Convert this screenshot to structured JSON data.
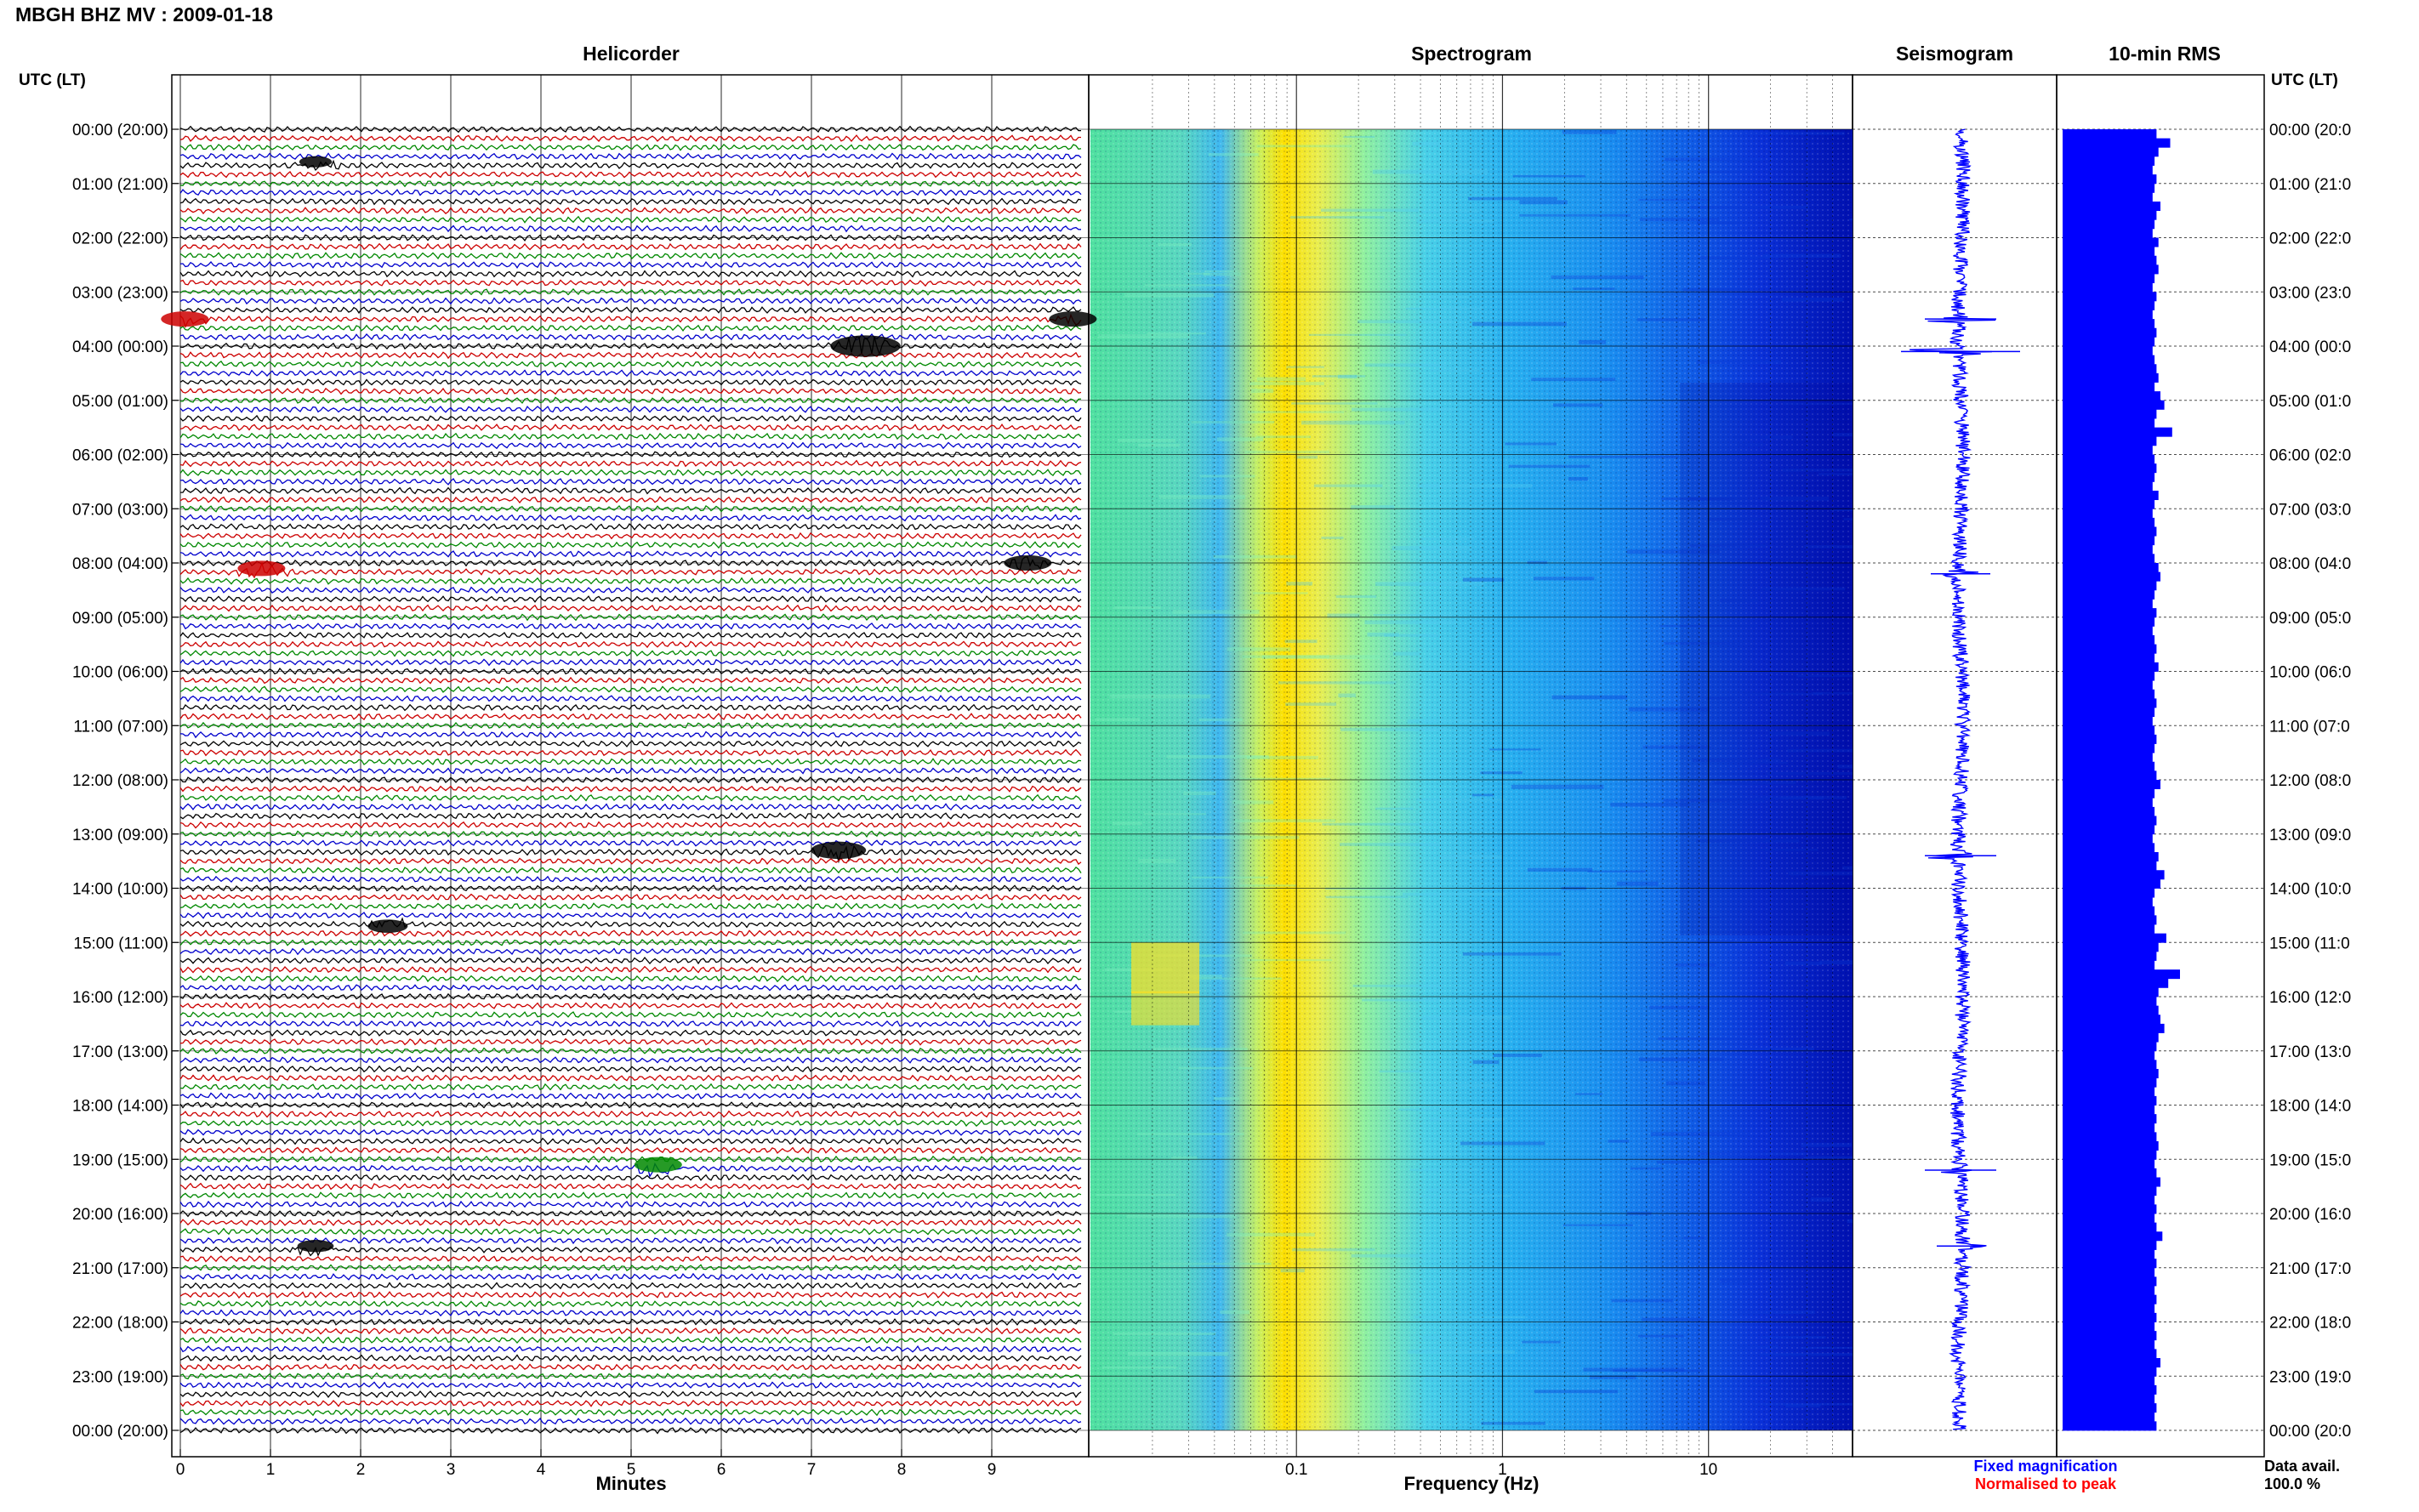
{
  "header": {
    "title": "MBGH BHZ MV : 2009-01-18"
  },
  "panels": {
    "helicorder": "Helicorder",
    "spectrogram": "Spectrogram",
    "seismogram": "Seismogram",
    "rms": "10-min RMS"
  },
  "axis_labels": {
    "utc_left": "UTC (LT)",
    "utc_right": "UTC (LT)",
    "minutes": "Minutes",
    "frequency": "Frequency (Hz)"
  },
  "legend": {
    "fixed": "Fixed magnification",
    "normalised": "Normalised to peak",
    "fixed_color": "#0000ff",
    "normalised_color": "#ff0000"
  },
  "availability": {
    "label": "Data avail.",
    "value": "100.0 %"
  },
  "colors": {
    "trace_cycle": [
      "#000000",
      "#cc0000",
      "#008800",
      "#0000cc"
    ],
    "seismogram": "#0000ff",
    "rms": "#0000ff"
  },
  "chart_data": {
    "type": "heatmap",
    "hour_labels": [
      "00:00 (20:00)",
      "01:00 (21:00)",
      "02:00 (22:00)",
      "03:00 (23:00)",
      "04:00 (00:00)",
      "05:00 (01:00)",
      "06:00 (02:00)",
      "07:00 (03:00)",
      "08:00 (04:00)",
      "09:00 (05:00)",
      "10:00 (06:00)",
      "11:00 (07:00)",
      "12:00 (08:00)",
      "13:00 (09:00)",
      "14:00 (10:00)",
      "15:00 (11:00)",
      "16:00 (12:00)",
      "17:00 (13:00)",
      "18:00 (14:00)",
      "19:00 (15:00)",
      "20:00 (16:00)",
      "21:00 (17:00)",
      "22:00 (18:00)",
      "23:00 (19:00)",
      "00:00 (20:00)"
    ],
    "right_hour_labels": [
      "00:00 (20:0",
      "01:00 (21:0",
      "02:00 (22:0",
      "03:00 (23:0",
      "04:00 (00:0",
      "05:00 (01:0",
      "06:00 (02:0",
      "07:00 (03:0",
      "08:00 (04:0",
      "09:00 (05:0",
      "10:00 (06:0",
      "11:00 (07:0",
      "12:00 (08:0",
      "13:00 (09:0",
      "14:00 (10:0",
      "15:00 (11:0",
      "16:00 (12:0",
      "17:00 (13:0",
      "18:00 (14:0",
      "19:00 (15:0",
      "20:00 (16:0",
      "21:00 (17:0",
      "22:00 (18:0",
      "23:00 (19:0",
      "00:00 (20:0"
    ],
    "minutes_ticks": [
      "0",
      "1",
      "2",
      "3",
      "4",
      "5",
      "6",
      "7",
      "8",
      "9"
    ],
    "minutes_range": [
      0,
      10
    ],
    "traces_per_hour": 6,
    "frequency_ticks": [
      "0.1",
      "1",
      "10"
    ],
    "frequency_range": [
      0.01,
      50
    ],
    "frequency_scale": "log",
    "grid": true,
    "helicorder_events": [
      {
        "hour": 0.6,
        "minute": 1.5,
        "color": "#000000",
        "amp": 0.6
      },
      {
        "hour": 3.5,
        "minute": 0.05,
        "color": "#cc0000",
        "amp": 1.0
      },
      {
        "hour": 3.5,
        "minute": 9.9,
        "color": "#000000",
        "amp": 1.0
      },
      {
        "hour": 4.0,
        "minute": 7.6,
        "color": "#000000",
        "amp": 1.6
      },
      {
        "hour": 8.1,
        "minute": 0.9,
        "color": "#cc0000",
        "amp": 1.0
      },
      {
        "hour": 8.0,
        "minute": 9.4,
        "color": "#000000",
        "amp": 1.0
      },
      {
        "hour": 13.3,
        "minute": 7.3,
        "color": "#000000",
        "amp": 1.2
      },
      {
        "hour": 14.7,
        "minute": 2.3,
        "color": "#000000",
        "amp": 0.8
      },
      {
        "hour": 19.1,
        "minute": 5.3,
        "color": "#008800",
        "amp": 1.0
      },
      {
        "hour": 20.6,
        "minute": 1.5,
        "color": "#000000",
        "amp": 0.7
      }
    ],
    "seismogram_spikes": [
      {
        "hour": 3.5,
        "amp": 0.6
      },
      {
        "hour": 4.1,
        "amp": 1.0
      },
      {
        "hour": 8.2,
        "amp": 0.5
      },
      {
        "hour": 13.4,
        "amp": 0.6
      },
      {
        "hour": 19.2,
        "amp": 0.6
      },
      {
        "hour": 20.6,
        "amp": 0.4
      }
    ],
    "rms_values": [
      0.48,
      0.55,
      0.49,
      0.47,
      0.46,
      0.48,
      0.47,
      0.46,
      0.5,
      0.48,
      0.47,
      0.46,
      0.49,
      0.47,
      0.48,
      0.49,
      0.47,
      0.46,
      0.48,
      0.47,
      0.46,
      0.47,
      0.48,
      0.47,
      0.46,
      0.47,
      0.48,
      0.49,
      0.47,
      0.5,
      0.52,
      0.48,
      0.47,
      0.56,
      0.48,
      0.46,
      0.47,
      0.48,
      0.47,
      0.46,
      0.49,
      0.47,
      0.46,
      0.47,
      0.48,
      0.47,
      0.46,
      0.47,
      0.49,
      0.5,
      0.48,
      0.47,
      0.46,
      0.48,
      0.47,
      0.46,
      0.47,
      0.48,
      0.47,
      0.49,
      0.47,
      0.46,
      0.47,
      0.48,
      0.47,
      0.46,
      0.47,
      0.48,
      0.47,
      0.46,
      0.47,
      0.48,
      0.5,
      0.47,
      0.46,
      0.47,
      0.48,
      0.47,
      0.46,
      0.47,
      0.49,
      0.48,
      0.52,
      0.5,
      0.47,
      0.46,
      0.47,
      0.48,
      0.47,
      0.53,
      0.49,
      0.48,
      0.47,
      0.6,
      0.54,
      0.49,
      0.48,
      0.49,
      0.5,
      0.52,
      0.49,
      0.48,
      0.47,
      0.48,
      0.49,
      0.48,
      0.47,
      0.48,
      0.47,
      0.48,
      0.47,
      0.48,
      0.49,
      0.48,
      0.47,
      0.48,
      0.5,
      0.48,
      0.47,
      0.48,
      0.47,
      0.48,
      0.51,
      0.48,
      0.47,
      0.48,
      0.47,
      0.48,
      0.47,
      0.48,
      0.47,
      0.48,
      0.47,
      0.48,
      0.47,
      0.48,
      0.5,
      0.48,
      0.47,
      0.48,
      0.47,
      0.48,
      0.47,
      0.48
    ]
  }
}
